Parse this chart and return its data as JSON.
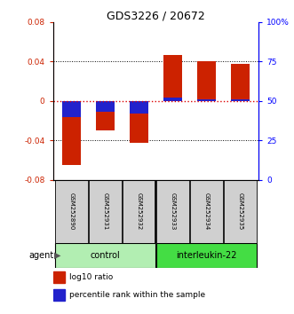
{
  "title": "GDS3226 / 20672",
  "samples": [
    "GSM252890",
    "GSM252931",
    "GSM252932",
    "GSM252933",
    "GSM252934",
    "GSM252935"
  ],
  "log10_ratio": [
    -0.065,
    -0.03,
    -0.042,
    0.047,
    0.04,
    0.038
  ],
  "percentile_rank": [
    40,
    43,
    42,
    52,
    51,
    51
  ],
  "groups": [
    {
      "label": "control",
      "color_light": "#B2EEB2",
      "color_dark": "#90EE90",
      "start": 0,
      "end": 2
    },
    {
      "label": "interleukin-22",
      "color_light": "#4CD94C",
      "color_dark": "#32CD32",
      "start": 3,
      "end": 5
    }
  ],
  "ylim_left": [
    -0.08,
    0.08
  ],
  "ylim_right": [
    0,
    100
  ],
  "yticks_left": [
    -0.08,
    -0.04,
    0,
    0.04,
    0.08
  ],
  "yticks_right": [
    0,
    25,
    50,
    75,
    100
  ],
  "ytick_labels_right": [
    "0",
    "25",
    "50",
    "75",
    "100%"
  ],
  "bar_color_red": "#CC2200",
  "bar_color_blue": "#2222CC",
  "zero_line_color": "#DD0000",
  "bar_width": 0.55,
  "legend_red": "log10 ratio",
  "legend_blue": "percentile rank within the sample",
  "ctrl_color": "#B2EEB2",
  "il22_color": "#44DD44"
}
